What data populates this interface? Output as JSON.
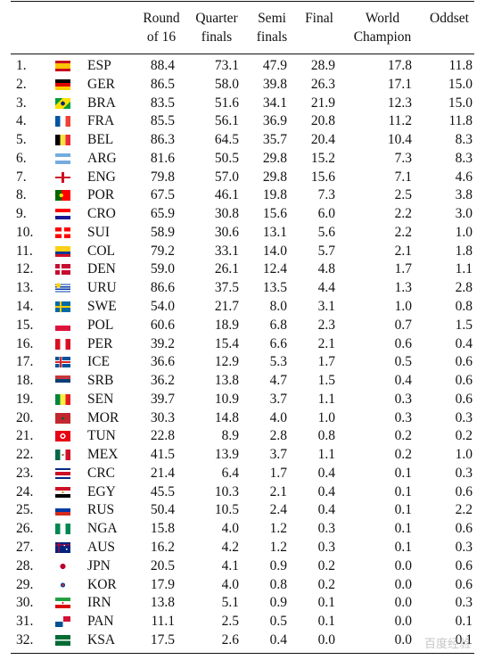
{
  "headers": {
    "round16": [
      "Round",
      "of 16"
    ],
    "quarter": [
      "Quarter",
      "finals"
    ],
    "semi": [
      "Semi",
      "finals"
    ],
    "final": [
      "Final"
    ],
    "world": [
      "World",
      "Champion"
    ],
    "oddset": [
      "Oddset"
    ]
  },
  "watermark": "百度经验",
  "rows": [
    {
      "rank": "1.",
      "code": "ESP",
      "r16": "88.4",
      "qf": "73.1",
      "sf": "47.9",
      "fin": "28.9",
      "wc": "17.8",
      "odd": "11.8"
    },
    {
      "rank": "2.",
      "code": "GER",
      "r16": "86.5",
      "qf": "58.0",
      "sf": "39.8",
      "fin": "26.3",
      "wc": "17.1",
      "odd": "15.0"
    },
    {
      "rank": "3.",
      "code": "BRA",
      "r16": "83.5",
      "qf": "51.6",
      "sf": "34.1",
      "fin": "21.9",
      "wc": "12.3",
      "odd": "15.0"
    },
    {
      "rank": "4.",
      "code": "FRA",
      "r16": "85.5",
      "qf": "56.1",
      "sf": "36.9",
      "fin": "20.8",
      "wc": "11.2",
      "odd": "11.8"
    },
    {
      "rank": "5.",
      "code": "BEL",
      "r16": "86.3",
      "qf": "64.5",
      "sf": "35.7",
      "fin": "20.4",
      "wc": "10.4",
      "odd": "8.3"
    },
    {
      "rank": "6.",
      "code": "ARG",
      "r16": "81.6",
      "qf": "50.5",
      "sf": "29.8",
      "fin": "15.2",
      "wc": "7.3",
      "odd": "8.3"
    },
    {
      "rank": "7.",
      "code": "ENG",
      "r16": "79.8",
      "qf": "57.0",
      "sf": "29.8",
      "fin": "15.6",
      "wc": "7.1",
      "odd": "4.6"
    },
    {
      "rank": "8.",
      "code": "POR",
      "r16": "67.5",
      "qf": "46.1",
      "sf": "19.8",
      "fin": "7.3",
      "wc": "2.5",
      "odd": "3.8"
    },
    {
      "rank": "9.",
      "code": "CRO",
      "r16": "65.9",
      "qf": "30.8",
      "sf": "15.6",
      "fin": "6.0",
      "wc": "2.2",
      "odd": "3.0"
    },
    {
      "rank": "10.",
      "code": "SUI",
      "r16": "58.9",
      "qf": "30.6",
      "sf": "13.1",
      "fin": "5.6",
      "wc": "2.2",
      "odd": "1.0"
    },
    {
      "rank": "11.",
      "code": "COL",
      "r16": "79.2",
      "qf": "33.1",
      "sf": "14.0",
      "fin": "5.7",
      "wc": "2.1",
      "odd": "1.8"
    },
    {
      "rank": "12.",
      "code": "DEN",
      "r16": "59.0",
      "qf": "26.1",
      "sf": "12.4",
      "fin": "4.8",
      "wc": "1.7",
      "odd": "1.1"
    },
    {
      "rank": "13.",
      "code": "URU",
      "r16": "86.6",
      "qf": "37.5",
      "sf": "13.5",
      "fin": "4.4",
      "wc": "1.3",
      "odd": "2.8"
    },
    {
      "rank": "14.",
      "code": "SWE",
      "r16": "54.0",
      "qf": "21.7",
      "sf": "8.0",
      "fin": "3.1",
      "wc": "1.0",
      "odd": "0.8"
    },
    {
      "rank": "15.",
      "code": "POL",
      "r16": "60.6",
      "qf": "18.9",
      "sf": "6.8",
      "fin": "2.3",
      "wc": "0.7",
      "odd": "1.5"
    },
    {
      "rank": "16.",
      "code": "PER",
      "r16": "39.2",
      "qf": "15.4",
      "sf": "6.6",
      "fin": "2.1",
      "wc": "0.6",
      "odd": "0.4"
    },
    {
      "rank": "17.",
      "code": "ICE",
      "r16": "36.6",
      "qf": "12.9",
      "sf": "5.3",
      "fin": "1.7",
      "wc": "0.5",
      "odd": "0.6"
    },
    {
      "rank": "18.",
      "code": "SRB",
      "r16": "36.2",
      "qf": "13.8",
      "sf": "4.7",
      "fin": "1.5",
      "wc": "0.4",
      "odd": "0.6"
    },
    {
      "rank": "19.",
      "code": "SEN",
      "r16": "39.7",
      "qf": "10.9",
      "sf": "3.7",
      "fin": "1.1",
      "wc": "0.3",
      "odd": "0.6"
    },
    {
      "rank": "20.",
      "code": "MOR",
      "r16": "30.3",
      "qf": "14.8",
      "sf": "4.0",
      "fin": "1.0",
      "wc": "0.3",
      "odd": "0.3"
    },
    {
      "rank": "21.",
      "code": "TUN",
      "r16": "22.8",
      "qf": "8.9",
      "sf": "2.8",
      "fin": "0.8",
      "wc": "0.2",
      "odd": "0.2"
    },
    {
      "rank": "22.",
      "code": "MEX",
      "r16": "41.5",
      "qf": "13.9",
      "sf": "3.7",
      "fin": "1.1",
      "wc": "0.2",
      "odd": "1.0"
    },
    {
      "rank": "23.",
      "code": "CRC",
      "r16": "21.4",
      "qf": "6.4",
      "sf": "1.7",
      "fin": "0.4",
      "wc": "0.1",
      "odd": "0.3"
    },
    {
      "rank": "24.",
      "code": "EGY",
      "r16": "45.5",
      "qf": "10.3",
      "sf": "2.1",
      "fin": "0.4",
      "wc": "0.1",
      "odd": "0.6"
    },
    {
      "rank": "25.",
      "code": "RUS",
      "r16": "50.4",
      "qf": "10.5",
      "sf": "2.4",
      "fin": "0.4",
      "wc": "0.1",
      "odd": "2.2"
    },
    {
      "rank": "26.",
      "code": "NGA",
      "r16": "15.8",
      "qf": "4.0",
      "sf": "1.2",
      "fin": "0.3",
      "wc": "0.1",
      "odd": "0.6"
    },
    {
      "rank": "27.",
      "code": "AUS",
      "r16": "16.2",
      "qf": "4.2",
      "sf": "1.2",
      "fin": "0.3",
      "wc": "0.1",
      "odd": "0.3"
    },
    {
      "rank": "28.",
      "code": "JPN",
      "r16": "20.5",
      "qf": "4.1",
      "sf": "0.9",
      "fin": "0.2",
      "wc": "0.0",
      "odd": "0.6"
    },
    {
      "rank": "29.",
      "code": "KOR",
      "r16": "17.9",
      "qf": "4.0",
      "sf": "0.8",
      "fin": "0.2",
      "wc": "0.0",
      "odd": "0.6"
    },
    {
      "rank": "30.",
      "code": "IRN",
      "r16": "13.8",
      "qf": "5.1",
      "sf": "0.9",
      "fin": "0.1",
      "wc": "0.0",
      "odd": "0.3"
    },
    {
      "rank": "31.",
      "code": "PAN",
      "r16": "11.1",
      "qf": "2.5",
      "sf": "0.5",
      "fin": "0.1",
      "wc": "0.0",
      "odd": "0.1"
    },
    {
      "rank": "32.",
      "code": "KSA",
      "r16": "17.5",
      "qf": "2.6",
      "sf": "0.4",
      "fin": "0.0",
      "wc": "0.0",
      "odd": "0.1"
    }
  ]
}
